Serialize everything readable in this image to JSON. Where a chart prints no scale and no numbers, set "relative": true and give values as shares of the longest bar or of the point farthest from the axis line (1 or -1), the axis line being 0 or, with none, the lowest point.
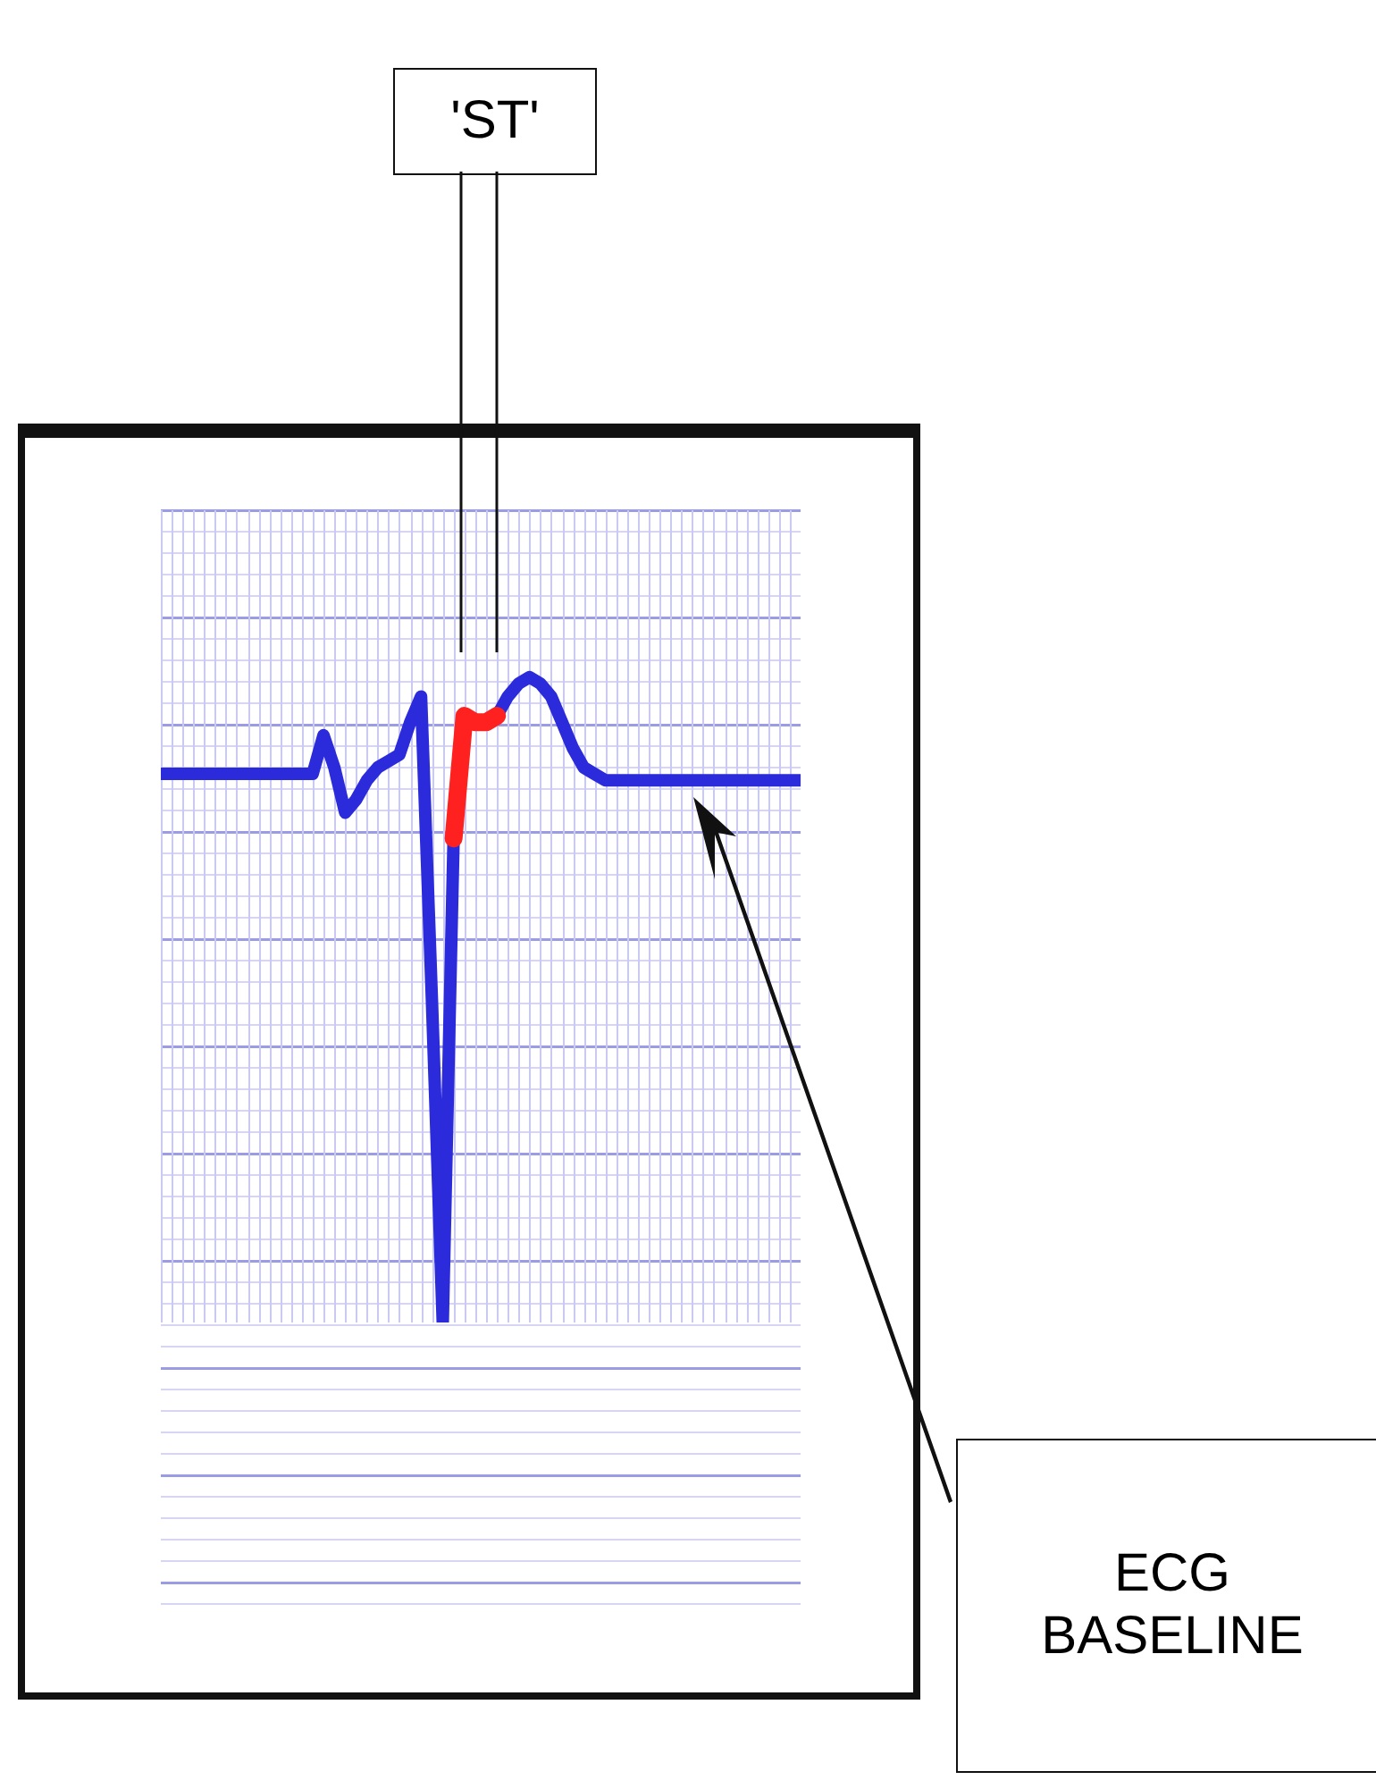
{
  "chart_data": {
    "type": "line",
    "relative": true,
    "grid": true,
    "marker": "none",
    "categories": [
      null,
      null,
      null,
      null,
      null,
      null,
      null,
      null,
      null,
      null,
      null,
      null,
      null,
      null,
      null,
      null,
      null,
      null,
      null,
      null,
      null,
      null,
      null,
      null,
      null,
      null,
      null,
      null,
      null,
      null,
      null,
      null,
      null,
      null,
      null,
      null,
      null,
      null,
      null,
      null,
      null,
      null,
      null,
      null,
      null,
      null,
      null,
      null,
      null,
      null,
      null,
      null,
      null,
      null,
      null,
      null,
      null,
      null,
      null,
      null
    ],
    "series": [
      {
        "color": "#2b2bdc",
        "values": [
          0.85,
          0.85,
          0.85,
          0.85,
          0.85,
          0.85,
          0.85,
          0.85,
          0.85,
          0.85,
          0.85,
          0.85,
          0.85,
          0.85,
          0.85,
          0.91,
          0.86,
          0.79,
          0.81,
          0.84,
          0.86,
          0.87,
          0.88,
          0.93,
          0.97,
          0.5,
          0,
          0.75,
          null,
          null,
          null,
          0.94,
          0.97,
          0.99,
          1,
          0.99,
          0.97,
          0.93,
          0.89,
          0.86,
          0.85,
          0.84,
          0.84,
          0.84,
          0.84,
          0.84,
          0.84,
          0.84,
          0.84,
          0.84,
          0.84,
          0.84,
          0.84,
          0.84,
          0.84,
          0.84,
          0.84,
          0.84,
          0.84,
          0.84
        ]
      },
      {
        "color": "#ff2020",
        "values": [
          null,
          null,
          null,
          null,
          null,
          null,
          null,
          null,
          null,
          null,
          null,
          null,
          null,
          null,
          null,
          null,
          null,
          null,
          null,
          null,
          null,
          null,
          null,
          null,
          null,
          null,
          null,
          0.75,
          0.94,
          0.93,
          0.93,
          0.94,
          null,
          null,
          null,
          null,
          null,
          null,
          null,
          null,
          null,
          null,
          null,
          null,
          null,
          null,
          null,
          null,
          null,
          null,
          null,
          null,
          null,
          null,
          null,
          null,
          null,
          null,
          null,
          null
        ]
      }
    ],
    "annotations": [
      "'ST'",
      "ECG BASELINE"
    ]
  }
}
